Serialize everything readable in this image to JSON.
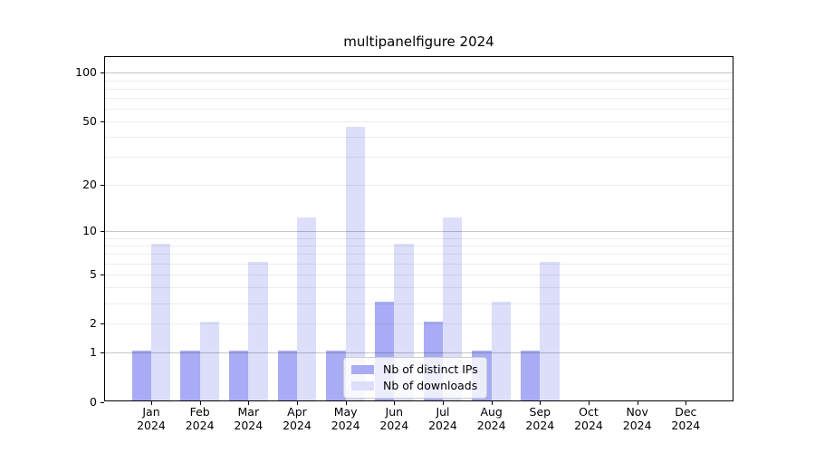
{
  "chart_data": {
    "type": "bar",
    "title": "multipanelfigure 2024",
    "categories": [
      "Jan",
      "Feb",
      "Mar",
      "Apr",
      "May",
      "Jun",
      "Jul",
      "Aug",
      "Sep",
      "Oct",
      "Nov",
      "Dec"
    ],
    "category_year": "2024",
    "series": [
      {
        "name": "Nb of distinct IPs",
        "color": "#a7acf4",
        "values": [
          1,
          1,
          1,
          1,
          1,
          3,
          2,
          1,
          1,
          0,
          0,
          0
        ]
      },
      {
        "name": "Nb of downloads",
        "color": "#dcdefa",
        "values": [
          8,
          2,
          6,
          12,
          45,
          8,
          12,
          3,
          6,
          0,
          0,
          0
        ]
      }
    ],
    "xlabel": "",
    "ylabel": "",
    "yscale": "log1p",
    "ylim": [
      0,
      125
    ],
    "ytick_labels": [
      "100",
      "50",
      "20",
      "10",
      "5",
      "2",
      "1",
      "0"
    ],
    "yticks": [
      100,
      50,
      20,
      10,
      5,
      2,
      1,
      0
    ],
    "major_gridlines": [
      1,
      10,
      100
    ],
    "minor_gridlines": [
      2,
      3,
      4,
      5,
      6,
      7,
      8,
      9,
      20,
      30,
      40,
      50,
      60,
      70,
      80,
      90
    ],
    "grid": true,
    "legend": {
      "position": "lower-center-inside",
      "labels": [
        "Nb of distinct IPs",
        "Nb of downloads"
      ]
    }
  }
}
